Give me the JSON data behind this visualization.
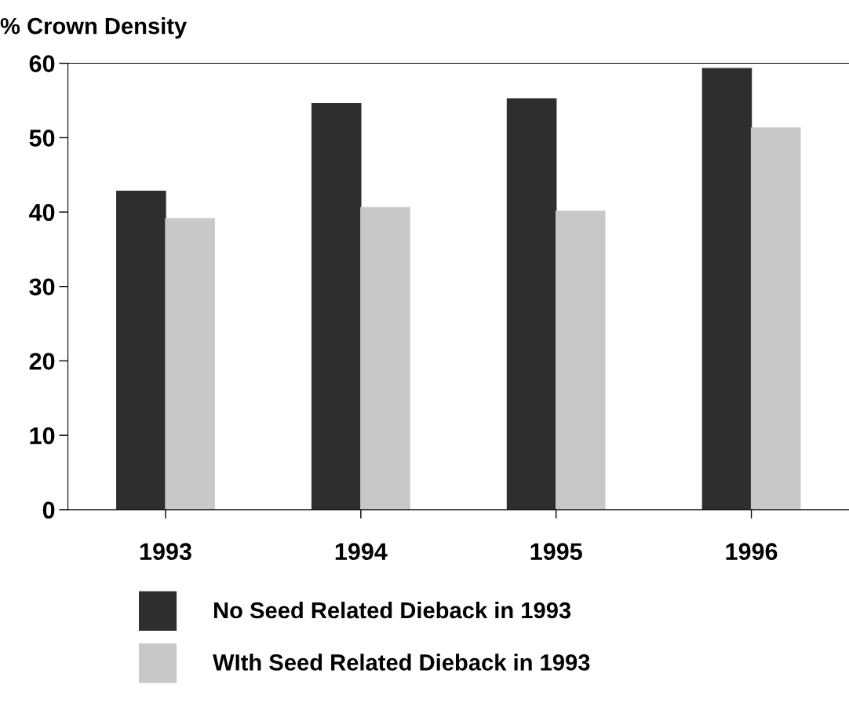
{
  "chart_data": {
    "type": "bar",
    "ylabel": "% Crown Density",
    "categories": [
      "1993",
      "1994",
      "1995",
      "1996"
    ],
    "series": [
      {
        "name": "No Seed Related Dieback in 1993",
        "color": "#2e2e2e",
        "values": [
          42.8,
          54.6,
          55.2,
          59.3
        ]
      },
      {
        "name": "WIth Seed Related Dieback in 1993",
        "color": "#c8c8c8",
        "values": [
          39.1,
          40.6,
          40.1,
          51.3
        ]
      }
    ],
    "ylim": [
      0,
      60
    ],
    "yticks": [
      0,
      10,
      20,
      30,
      40,
      50,
      60
    ],
    "grid": false,
    "legend": "bottom"
  }
}
